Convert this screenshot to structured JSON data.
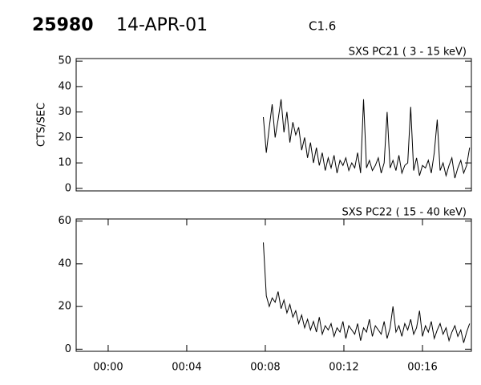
{
  "header": {
    "id": "25980",
    "date": "14-APR-01",
    "flare_class": "C1.6"
  },
  "chart_data": [
    {
      "type": "line",
      "title": "SXS PC21  (  3 - 15 keV)",
      "ylabel": "CTS/SEC",
      "color": "#000000",
      "xlim": [
        -1.63,
        18.49
      ],
      "ylim": [
        -1,
        51
      ],
      "yticks": [
        0,
        10,
        20,
        30,
        40,
        50
      ],
      "x": [
        7.9,
        8.05,
        8.2,
        8.35,
        8.5,
        8.65,
        8.8,
        8.95,
        9.1,
        9.25,
        9.4,
        9.55,
        9.7,
        9.85,
        10,
        10.15,
        10.3,
        10.45,
        10.6,
        10.75,
        10.9,
        11.05,
        11.2,
        11.35,
        11.5,
        11.65,
        11.8,
        11.95,
        12.1,
        12.25,
        12.4,
        12.55,
        12.7,
        12.85,
        13,
        13.15,
        13.3,
        13.45,
        13.6,
        13.75,
        13.9,
        14.05,
        14.2,
        14.35,
        14.5,
        14.65,
        14.8,
        14.95,
        15.1,
        15.25,
        15.4,
        15.55,
        15.7,
        15.85,
        16,
        16.15,
        16.3,
        16.45,
        16.6,
        16.75,
        16.9,
        17.05,
        17.2,
        17.35,
        17.5,
        17.65,
        17.8,
        17.95,
        18.1,
        18.25,
        18.4
      ],
      "values": [
        28,
        14,
        24,
        33,
        20,
        27,
        35,
        22,
        30,
        18,
        26,
        21,
        24,
        15,
        20,
        12,
        18,
        10,
        16,
        9,
        14,
        7,
        12,
        8,
        13,
        6,
        11,
        9,
        12,
        7,
        10,
        8,
        14,
        6,
        35,
        8,
        11,
        7,
        9,
        12,
        6,
        10,
        30,
        8,
        11,
        7,
        13,
        6,
        9,
        10,
        32,
        7,
        12,
        5,
        9,
        8,
        11,
        6,
        14,
        27,
        7,
        10,
        5,
        9,
        12,
        4,
        8,
        11,
        6,
        9,
        16
      ]
    },
    {
      "type": "line",
      "title": "SXS PC22  ( 15 - 40 keV)",
      "color": "#000000",
      "xlim": [
        -1.63,
        18.49
      ],
      "ylim": [
        -1,
        61
      ],
      "yticks": [
        0,
        20,
        40,
        60
      ],
      "xticks": [
        {
          "value": 0,
          "label": "00:00"
        },
        {
          "value": 4,
          "label": "00:04"
        },
        {
          "value": 8,
          "label": "00:08"
        },
        {
          "value": 12,
          "label": "00:12"
        },
        {
          "value": 16,
          "label": "00:16"
        }
      ],
      "x": [
        7.9,
        8.05,
        8.2,
        8.35,
        8.5,
        8.65,
        8.8,
        8.95,
        9.1,
        9.25,
        9.4,
        9.55,
        9.7,
        9.85,
        10,
        10.15,
        10.3,
        10.45,
        10.6,
        10.75,
        10.9,
        11.05,
        11.2,
        11.35,
        11.5,
        11.65,
        11.8,
        11.95,
        12.1,
        12.25,
        12.4,
        12.55,
        12.7,
        12.85,
        13,
        13.15,
        13.3,
        13.45,
        13.6,
        13.75,
        13.9,
        14.05,
        14.2,
        14.35,
        14.5,
        14.65,
        14.8,
        14.95,
        15.1,
        15.25,
        15.4,
        15.55,
        15.7,
        15.85,
        16,
        16.15,
        16.3,
        16.45,
        16.6,
        16.75,
        16.9,
        17.05,
        17.2,
        17.35,
        17.5,
        17.65,
        17.8,
        17.95,
        18.1,
        18.25,
        18.4
      ],
      "values": [
        50,
        25,
        20,
        24,
        22,
        27,
        19,
        23,
        17,
        21,
        15,
        18,
        12,
        16,
        10,
        14,
        9,
        13,
        8,
        15,
        7,
        11,
        9,
        12,
        6,
        10,
        8,
        13,
        5,
        11,
        9,
        7,
        12,
        4,
        10,
        8,
        14,
        6,
        11,
        9,
        7,
        13,
        5,
        10,
        20,
        8,
        11,
        6,
        12,
        9,
        14,
        7,
        10,
        18,
        6,
        11,
        8,
        13,
        5,
        9,
        12,
        7,
        10,
        4,
        8,
        11,
        6,
        9,
        3,
        8,
        12
      ]
    }
  ]
}
